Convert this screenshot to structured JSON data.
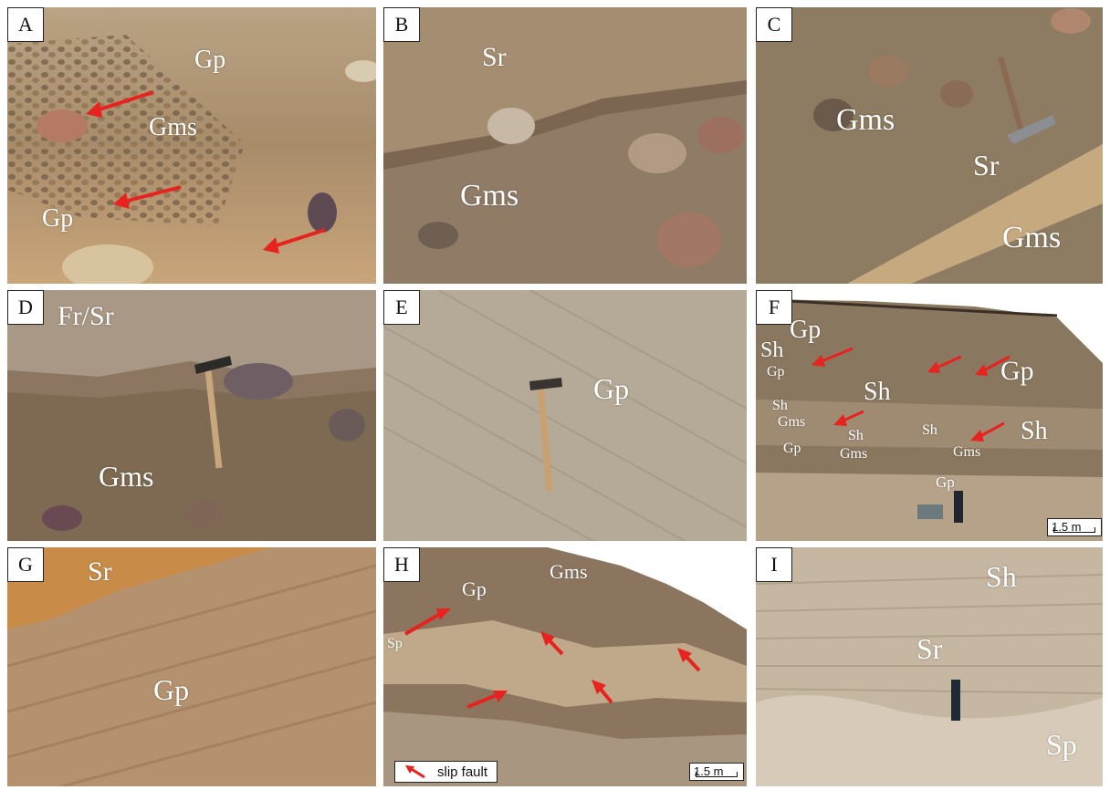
{
  "colors": {
    "arrow": "#e8221e",
    "label_text": "#ffffff"
  },
  "panels": {
    "A": {
      "label": "A",
      "units": {
        "gp_top": "Gp",
        "gms": "Gms",
        "gp_left": "Gp"
      }
    },
    "B": {
      "label": "B",
      "units": {
        "sr": "Sr",
        "gms": "Gms"
      }
    },
    "C": {
      "label": "C",
      "units": {
        "gms_left": "Gms",
        "sr": "Sr",
        "gms_right": "Gms"
      }
    },
    "D": {
      "label": "D",
      "units": {
        "frsr": "Fr/Sr",
        "gms": "Gms"
      }
    },
    "E": {
      "label": "E",
      "units": {
        "gp": "Gp"
      }
    },
    "F": {
      "label": "F",
      "units": {
        "gp_top": "Gp",
        "sh_left": "Sh",
        "gp_small1": "Gp",
        "sh_mid": "Sh",
        "gp_right": "Gp",
        "sh_small1": "Sh",
        "gms_small1": "Gms",
        "sh_small2": "Sh",
        "sh_small3": "Sh",
        "gp_small2": "Gp",
        "gms_small2": "Gms",
        "gms_small3": "Gms",
        "sh_right": "Sh",
        "gp_bottom": "Gp"
      },
      "scale": "1.5 m"
    },
    "G": {
      "label": "G",
      "units": {
        "sr": "Sr",
        "gp": "Gp"
      }
    },
    "H": {
      "label": "H",
      "units": {
        "gp": "Gp",
        "gms": "Gms",
        "sp": "Sp"
      },
      "scale": "1.5 m",
      "legend": "slip fault"
    },
    "I": {
      "label": "I",
      "units": {
        "sh": "Sh",
        "sr": "Sr",
        "sp": "Sp"
      }
    }
  }
}
